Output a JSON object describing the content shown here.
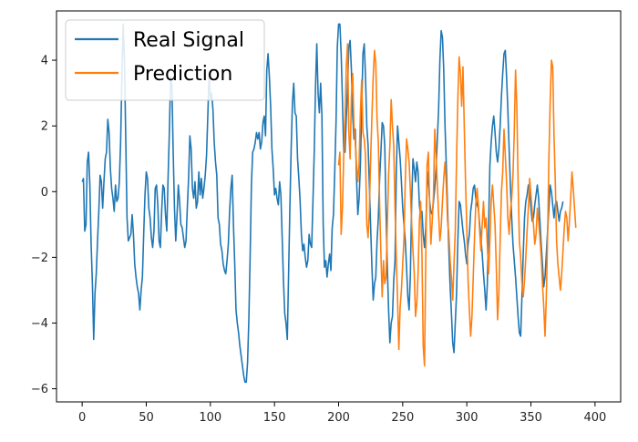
{
  "chart_data": {
    "type": "line",
    "title": "",
    "xlabel": "",
    "ylabel": "",
    "xlim": [
      -20,
      420
    ],
    "ylim": [
      -6.4,
      5.5
    ],
    "x_ticks": [
      0,
      50,
      100,
      150,
      200,
      250,
      300,
      350,
      400
    ],
    "y_ticks": [
      -6,
      -4,
      -2,
      0,
      2,
      4
    ],
    "grid": false,
    "legend_position": "top-left",
    "series": [
      {
        "name": "Real Signal",
        "color": "#1f77b4",
        "x_start": 0,
        "values": [
          0.3,
          0.4,
          -1.2,
          -1.0,
          0.9,
          1.2,
          0.2,
          -1.6,
          -2.8,
          -4.5,
          -3.1,
          -2.5,
          -1.5,
          -0.6,
          0.5,
          0.3,
          -0.5,
          0.3,
          1.0,
          1.2,
          2.2,
          1.8,
          0.7,
          0.1,
          -0.2,
          -0.6,
          0.2,
          -0.3,
          -0.2,
          0.3,
          1.5,
          3.5,
          5.1,
          4.0,
          1.6,
          -0.8,
          -1.5,
          -1.4,
          -1.3,
          -0.7,
          -1.3,
          -2.2,
          -2.6,
          -2.9,
          -3.1,
          -3.6,
          -3.0,
          -2.6,
          -1.3,
          -0.1,
          0.6,
          0.4,
          -0.5,
          -0.8,
          -1.4,
          -1.7,
          -1.2,
          0.1,
          0.2,
          -0.4,
          -1.5,
          -1.7,
          -0.6,
          0.2,
          0.1,
          -0.7,
          -1.2,
          0.4,
          1.8,
          3.5,
          3.2,
          1.2,
          -0.5,
          -1.5,
          -0.7,
          0.2,
          -0.3,
          -1.0,
          -1.1,
          -1.4,
          -1.7,
          -1.5,
          -0.5,
          0.4,
          1.7,
          1.3,
          0.1,
          -0.2,
          0.3,
          -0.5,
          -0.3,
          0.6,
          -0.1,
          0.4,
          -0.2,
          0.1,
          0.5,
          1.1,
          2.3,
          3.6,
          2.8,
          3.0,
          2.5,
          1.5,
          0.9,
          0.5,
          -0.8,
          -1.0,
          -1.6,
          -1.8,
          -2.2,
          -2.4,
          -2.5,
          -2.1,
          -1.6,
          -0.6,
          0.1,
          0.5,
          -1.0,
          -2.2,
          -3.6,
          -4.0,
          -4.3,
          -4.7,
          -5.0,
          -5.3,
          -5.6,
          -5.8,
          -5.8,
          -5.2,
          -3.9,
          -2.0,
          0.2,
          1.2,
          1.3,
          1.5,
          1.8,
          1.6,
          1.8,
          1.3,
          1.5,
          2.1,
          2.3,
          1.7,
          3.7,
          4.2,
          3.5,
          2.6,
          1.3,
          0.7,
          -0.1,
          0.1,
          -0.2,
          -0.4,
          0.3,
          -0.1,
          -1.4,
          -2.7,
          -3.7,
          -4.0,
          -4.5,
          -2.5,
          -0.5,
          1.3,
          2.7,
          3.3,
          2.4,
          2.3,
          1.0,
          0.4,
          -0.3,
          -1.3,
          -1.8,
          -1.6,
          -2.0,
          -2.3,
          -2.1,
          -1.3,
          -1.6,
          -1.7,
          -0.3,
          1.2,
          3.2,
          4.5,
          3.0,
          2.4,
          3.3,
          2.3,
          -1.0,
          -2.3,
          -2.1,
          -2.6,
          -2.2,
          -1.9,
          -2.4,
          -1.1,
          -0.7,
          0.6,
          2.1,
          4.4,
          5.1,
          5.1,
          4.2,
          2.8,
          1.2,
          1.2,
          2.2,
          3.2,
          4.4,
          4.6,
          3.7,
          2.3,
          1.6,
          1.9,
          0.4,
          -0.7,
          -0.2,
          0.8,
          2.5,
          4.2,
          4.5,
          3.5,
          2.0,
          1.4,
          0.2,
          -1.1,
          -2.3,
          -3.3,
          -2.8,
          -2.6,
          -1.5,
          -0.8,
          0.4,
          1.2,
          2.1,
          2.0,
          1.4,
          -0.6,
          -2.3,
          -3.6,
          -4.6,
          -4.0,
          -3.8,
          -2.7,
          -2.1,
          0.6,
          2.0,
          1.5,
          1.0,
          0.3,
          -0.5,
          -1.0,
          -1.5,
          -2.3,
          -3.2,
          -3.6,
          -2.5,
          -0.3,
          1.0,
          0.7,
          0.3,
          0.9,
          0.6,
          -0.4,
          -0.8,
          -0.6,
          -1.3,
          -1.7,
          -1.1,
          0.1,
          0.6,
          -0.3,
          -0.6,
          -0.7,
          -0.3,
          0.1,
          0.7,
          1.6,
          2.5,
          4.0,
          4.9,
          4.7,
          3.7,
          2.0,
          0.8,
          -0.5,
          -1.8,
          -2.9,
          -3.7,
          -4.6,
          -4.9,
          -4.0,
          -3.1,
          -1.5,
          -0.3,
          -0.4,
          -0.8,
          -1.2,
          -1.5,
          -1.9,
          -2.2,
          -1.6,
          -1.3,
          -0.6,
          -0.3,
          0.1,
          0.2,
          -0.2,
          -0.4,
          -0.5,
          -1.0,
          -1.4,
          -1.9,
          -2.5,
          -3.0,
          -3.6,
          -2.8,
          -1.0,
          0.8,
          1.5,
          2.0,
          2.3,
          1.8,
          1.2,
          0.9,
          1.3,
          2.0,
          2.9,
          3.6,
          4.2,
          4.3,
          3.5,
          2.5,
          1.3,
          0.2,
          -0.8,
          -1.6,
          -2.1,
          -2.6,
          -3.2,
          -3.8,
          -4.3,
          -4.4,
          -3.2,
          -1.9,
          -0.8,
          -0.3,
          -0.1,
          0.2,
          0.0,
          -0.5,
          -0.9,
          -0.8,
          -0.4,
          -0.1,
          0.2,
          -0.2,
          -0.9,
          -1.6,
          -2.2,
          -2.9,
          -2.6,
          -1.9,
          -1.2,
          -0.5,
          0.2,
          0.0,
          -0.4,
          -0.8,
          -0.4,
          -0.3,
          -0.6,
          -0.9,
          -0.6,
          -0.5,
          -0.3
        ]
      },
      {
        "name": "Prediction",
        "color": "#ff7f0e",
        "x_start": 200,
        "values": [
          0.8,
          1.2,
          -1.3,
          -0.5,
          1.1,
          2.2,
          3.8,
          4.5,
          1.8,
          1.0,
          2.9,
          3.6,
          2.0,
          1.5,
          0.8,
          0.3,
          0.9,
          2.4,
          3.4,
          1.8,
          1.6,
          1.1,
          -1.0,
          -1.4,
          -0.5,
          1.0,
          2.3,
          3.5,
          4.3,
          3.9,
          2.2,
          1.5,
          -0.4,
          -1.9,
          -3.2,
          -2.1,
          -2.8,
          -2.6,
          -1.0,
          0.5,
          1.4,
          2.8,
          2.0,
          1.4,
          -0.5,
          -2.0,
          -3.3,
          -4.8,
          -3.5,
          -3.0,
          -2.2,
          -1.4,
          0.3,
          1.6,
          1.3,
          0.9,
          0.0,
          -1.0,
          -1.8,
          -2.5,
          -3.8,
          -3.4,
          -2.5,
          -0.9,
          -0.3,
          -1.9,
          -4.7,
          -5.3,
          -2.0,
          0.8,
          1.2,
          -0.4,
          -1.6,
          -0.9,
          -0.1,
          1.9,
          1.1,
          0.2,
          -0.7,
          -1.5,
          -1.1,
          -0.3,
          0.4,
          0.9,
          0.2,
          -0.9,
          -1.3,
          -2.1,
          -2.6,
          -3.3,
          -2.2,
          -1.2,
          1.0,
          2.8,
          4.1,
          3.6,
          2.6,
          3.8,
          2.0,
          0.3,
          -1.1,
          -2.7,
          -3.6,
          -4.4,
          -3.8,
          -2.6,
          -1.4,
          -0.4,
          0.1,
          -0.4,
          -1.2,
          -1.8,
          -1.0,
          -0.3,
          -1.1,
          -0.8,
          -1.6,
          -2.5,
          -1.5,
          -0.3,
          0.2,
          -0.4,
          -1.0,
          -2.3,
          -3.9,
          -3.1,
          -1.5,
          0.0,
          0.6,
          1.9,
          1.1,
          0.3,
          -0.8,
          -1.3,
          -0.6,
          -0.2,
          0.5,
          1.8,
          3.7,
          2.6,
          0.3,
          -1.5,
          -2.0,
          -2.8,
          -3.2,
          -2.7,
          -2.0,
          -1.2,
          -0.5,
          0.4,
          -0.1,
          -0.6,
          -1.0,
          -1.6,
          -1.3,
          -0.5,
          -0.9,
          -1.4,
          -2.0,
          -2.8,
          -3.5,
          -4.4,
          -3.2,
          -1.4,
          1.0,
          2.7,
          4.0,
          3.8,
          1.7,
          0.3,
          -1.5,
          -2.2,
          -2.6,
          -3.0,
          -2.5,
          -1.8,
          -1.1,
          -0.6,
          -0.8,
          -1.5,
          -0.9,
          -0.2,
          0.6,
          0.1,
          -0.5,
          -1.1
        ]
      }
    ]
  }
}
